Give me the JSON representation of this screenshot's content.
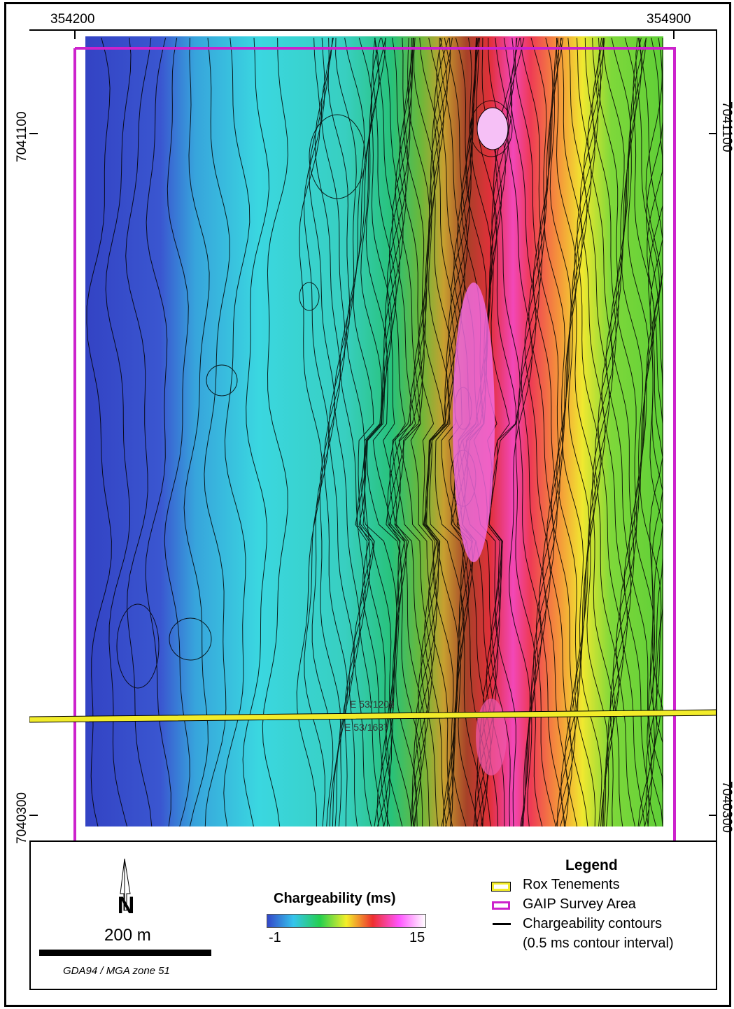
{
  "map": {
    "x_ticks": [
      "354200",
      "354900"
    ],
    "y_ticks": [
      "7041100",
      "7040300"
    ],
    "tenement_labels": [
      "E 53/1209",
      "E 53/1637"
    ]
  },
  "legend": {
    "title": "Legend",
    "items": [
      {
        "label": "Rox Tenements",
        "color": "#f2ec2a"
      },
      {
        "label": "GAIP Survey Area",
        "color": "#cc22cc"
      },
      {
        "label": "Chargeability contours",
        "sub": "(0.5 ms contour interval)",
        "color": "#000000"
      }
    ]
  },
  "colorbar": {
    "title": "Chargeability (ms)",
    "min": "-1",
    "max": "15",
    "colors": [
      "#3347c9",
      "#35c4ec",
      "#24cf4e",
      "#f4ef2a",
      "#ee2f2f",
      "#ff55ff",
      "#ffffff"
    ]
  },
  "scale": {
    "label": "200 m"
  },
  "north_arrow": {
    "label": "N",
    "icon": "north-arrow-icon"
  },
  "projection": "GDA94 / MGA zone 51"
}
